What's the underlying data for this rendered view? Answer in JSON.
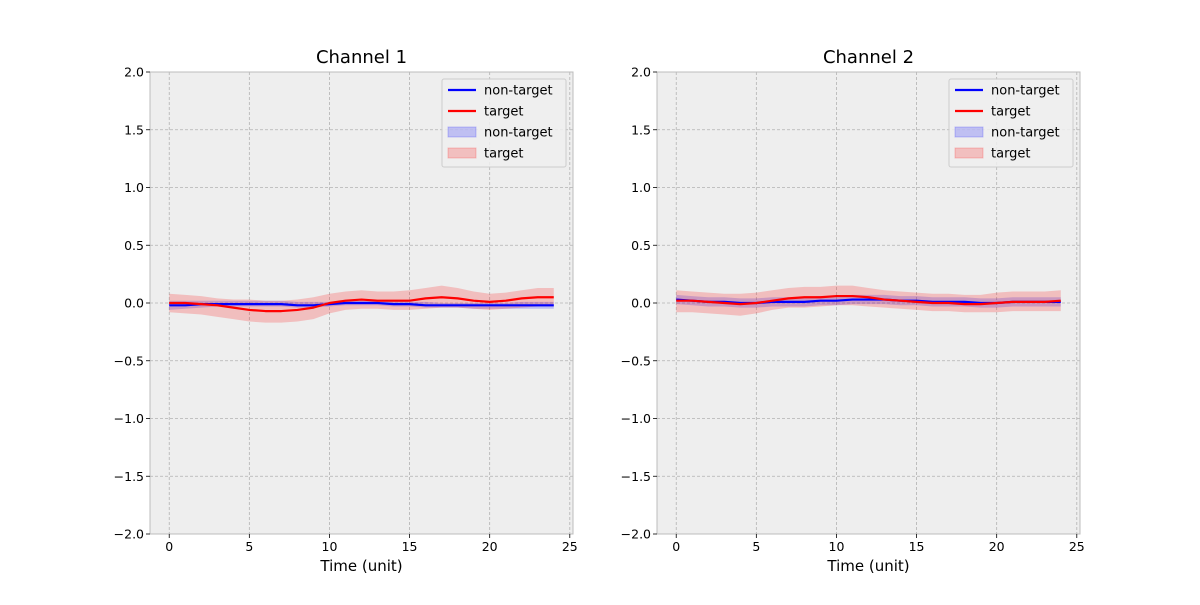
{
  "chart_data": [
    {
      "type": "line",
      "title": "Channel 1",
      "xlabel": "Time (unit)",
      "ylabel": "",
      "xlim": [
        -1.2,
        25.2
      ],
      "ylim": [
        -2.0,
        2.0
      ],
      "xticks": [
        0,
        5,
        10,
        15,
        20,
        25
      ],
      "yticks": [
        -2.0,
        -1.5,
        -1.0,
        -0.5,
        0.0,
        0.5,
        1.0,
        1.5,
        2.0
      ],
      "xtick_labels": [
        "0",
        "5",
        "10",
        "15",
        "20",
        "25"
      ],
      "ytick_labels": [
        "−2.0",
        "−1.5",
        "−1.0",
        "−0.5",
        "0.0",
        "0.5",
        "1.0",
        "1.5",
        "2.0"
      ],
      "grid": true,
      "legend_position": "top-right",
      "legend": [
        "non-target",
        "target",
        "non-target",
        "target"
      ],
      "x": [
        0,
        1,
        2,
        3,
        4,
        5,
        6,
        7,
        8,
        9,
        10,
        11,
        12,
        13,
        14,
        15,
        16,
        17,
        18,
        19,
        20,
        21,
        22,
        23,
        24
      ],
      "series": [
        {
          "name": "non-target",
          "color": "#0000ff",
          "values": [
            -0.02,
            -0.02,
            -0.01,
            -0.01,
            -0.01,
            -0.01,
            -0.01,
            -0.01,
            -0.02,
            -0.02,
            -0.01,
            0.0,
            0.0,
            0.0,
            -0.01,
            -0.01,
            -0.02,
            -0.02,
            -0.02,
            -0.02,
            -0.02,
            -0.02,
            -0.02,
            -0.02,
            -0.02
          ],
          "lower": [
            -0.06,
            -0.05,
            -0.04,
            -0.03,
            -0.03,
            -0.03,
            -0.03,
            -0.03,
            -0.04,
            -0.04,
            -0.03,
            -0.02,
            -0.02,
            -0.02,
            -0.03,
            -0.03,
            -0.04,
            -0.04,
            -0.04,
            -0.05,
            -0.05,
            -0.05,
            -0.05,
            -0.05,
            -0.05
          ],
          "upper": [
            0.02,
            0.02,
            0.02,
            0.02,
            0.02,
            0.02,
            0.02,
            0.02,
            0.01,
            0.01,
            0.01,
            0.02,
            0.02,
            0.02,
            0.02,
            0.01,
            0.01,
            0.0,
            0.0,
            0.0,
            0.0,
            0.0,
            0.01,
            0.01,
            0.01
          ]
        },
        {
          "name": "target",
          "color": "#ff0000",
          "values": [
            0.0,
            0.0,
            -0.01,
            -0.02,
            -0.04,
            -0.06,
            -0.07,
            -0.07,
            -0.06,
            -0.04,
            0.0,
            0.02,
            0.03,
            0.02,
            0.02,
            0.02,
            0.04,
            0.05,
            0.04,
            0.02,
            0.01,
            0.02,
            0.04,
            0.05,
            0.05
          ],
          "lower": [
            -0.08,
            -0.09,
            -0.1,
            -0.12,
            -0.14,
            -0.16,
            -0.17,
            -0.17,
            -0.16,
            -0.14,
            -0.09,
            -0.06,
            -0.05,
            -0.05,
            -0.06,
            -0.06,
            -0.05,
            -0.04,
            -0.04,
            -0.05,
            -0.06,
            -0.05,
            -0.04,
            -0.03,
            -0.03
          ],
          "upper": [
            0.08,
            0.07,
            0.06,
            0.04,
            0.03,
            0.03,
            0.02,
            0.02,
            0.03,
            0.05,
            0.08,
            0.1,
            0.11,
            0.1,
            0.1,
            0.11,
            0.13,
            0.15,
            0.13,
            0.1,
            0.08,
            0.09,
            0.11,
            0.13,
            0.13
          ]
        }
      ]
    },
    {
      "type": "line",
      "title": "Channel 2",
      "xlabel": "Time (unit)",
      "ylabel": "",
      "xlim": [
        -1.2,
        25.2
      ],
      "ylim": [
        -2.0,
        2.0
      ],
      "xticks": [
        0,
        5,
        10,
        15,
        20,
        25
      ],
      "yticks": [
        -2.0,
        -1.5,
        -1.0,
        -0.5,
        0.0,
        0.5,
        1.0,
        1.5,
        2.0
      ],
      "xtick_labels": [
        "0",
        "5",
        "10",
        "15",
        "20",
        "25"
      ],
      "ytick_labels": [
        "−2.0",
        "−1.5",
        "−1.0",
        "−0.5",
        "0.0",
        "0.5",
        "1.0",
        "1.5",
        "2.0"
      ],
      "grid": true,
      "legend_position": "top-right",
      "legend": [
        "non-target",
        "target",
        "non-target",
        "target"
      ],
      "x": [
        0,
        1,
        2,
        3,
        4,
        5,
        6,
        7,
        8,
        9,
        10,
        11,
        12,
        13,
        14,
        15,
        16,
        17,
        18,
        19,
        20,
        21,
        22,
        23,
        24
      ],
      "series": [
        {
          "name": "non-target",
          "color": "#0000ff",
          "values": [
            0.03,
            0.02,
            0.01,
            0.01,
            0.0,
            0.0,
            0.01,
            0.01,
            0.01,
            0.02,
            0.02,
            0.03,
            0.03,
            0.03,
            0.02,
            0.02,
            0.01,
            0.01,
            0.01,
            0.0,
            0.0,
            0.01,
            0.01,
            0.01,
            0.01
          ],
          "lower": [
            -0.01,
            -0.02,
            -0.03,
            -0.03,
            -0.04,
            -0.04,
            -0.03,
            -0.03,
            -0.03,
            -0.02,
            -0.02,
            -0.01,
            -0.01,
            -0.01,
            -0.02,
            -0.02,
            -0.03,
            -0.03,
            -0.03,
            -0.04,
            -0.04,
            -0.03,
            -0.03,
            -0.03,
            -0.03
          ],
          "upper": [
            0.07,
            0.06,
            0.05,
            0.05,
            0.04,
            0.04,
            0.05,
            0.05,
            0.05,
            0.06,
            0.06,
            0.07,
            0.07,
            0.07,
            0.06,
            0.06,
            0.05,
            0.05,
            0.05,
            0.04,
            0.04,
            0.05,
            0.05,
            0.05,
            0.05
          ]
        },
        {
          "name": "target",
          "color": "#ff0000",
          "values": [
            0.02,
            0.02,
            0.01,
            0.0,
            -0.01,
            0.0,
            0.02,
            0.04,
            0.05,
            0.05,
            0.06,
            0.06,
            0.05,
            0.03,
            0.02,
            0.01,
            0.0,
            0.0,
            -0.01,
            -0.01,
            0.0,
            0.01,
            0.01,
            0.01,
            0.02
          ],
          "lower": [
            -0.08,
            -0.08,
            -0.09,
            -0.1,
            -0.11,
            -0.09,
            -0.06,
            -0.04,
            -0.04,
            -0.03,
            -0.02,
            -0.02,
            -0.03,
            -0.04,
            -0.05,
            -0.06,
            -0.07,
            -0.07,
            -0.08,
            -0.08,
            -0.08,
            -0.07,
            -0.07,
            -0.07,
            -0.07
          ],
          "upper": [
            0.11,
            0.1,
            0.09,
            0.08,
            0.08,
            0.09,
            0.11,
            0.13,
            0.14,
            0.14,
            0.15,
            0.15,
            0.13,
            0.11,
            0.1,
            0.09,
            0.08,
            0.08,
            0.07,
            0.07,
            0.09,
            0.1,
            0.1,
            0.1,
            0.11
          ]
        }
      ]
    }
  ]
}
